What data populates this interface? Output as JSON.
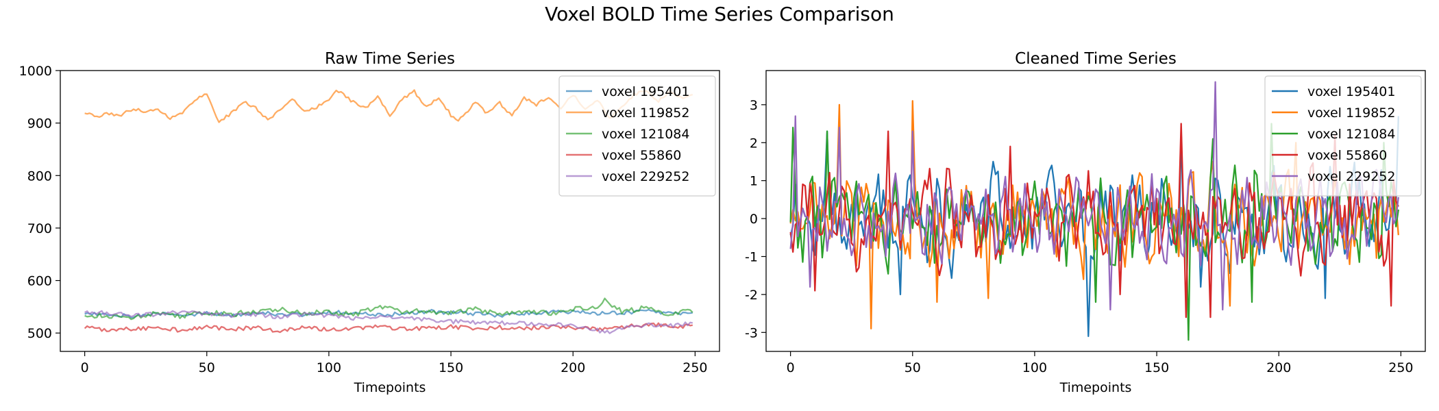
{
  "figure_title": "Voxel BOLD Time Series Comparison",
  "chart_data": [
    {
      "type": "line",
      "title": "Raw Time Series",
      "xlabel": "Timepoints",
      "ylabel": "",
      "xlim": [
        -10,
        260
      ],
      "ylim": [
        465,
        1000
      ],
      "xticks": [
        0,
        50,
        100,
        150,
        200,
        250
      ],
      "yticks": [
        500,
        600,
        700,
        800,
        900,
        1000
      ],
      "legend": "top-right",
      "line_alpha": 0.65,
      "n_points": 250,
      "series": [
        {
          "name": "voxel 195401",
          "color": "#1f77b4",
          "anchors": [
            [
              0,
              538
            ],
            [
              10,
              536
            ],
            [
              20,
              532
            ],
            [
              30,
              537
            ],
            [
              40,
              533
            ],
            [
              50,
              538
            ],
            [
              60,
              534
            ],
            [
              70,
              540
            ],
            [
              80,
              536
            ],
            [
              90,
              535
            ],
            [
              100,
              540
            ],
            [
              110,
              538
            ],
            [
              120,
              534
            ],
            [
              130,
              536
            ],
            [
              140,
              541
            ],
            [
              150,
              539
            ],
            [
              160,
              537
            ],
            [
              170,
              533
            ],
            [
              180,
              538
            ],
            [
              190,
              540
            ],
            [
              200,
              541
            ],
            [
              210,
              537
            ],
            [
              220,
              539
            ],
            [
              230,
              541
            ],
            [
              240,
              537
            ],
            [
              249,
              538
            ]
          ],
          "amp": 4
        },
        {
          "name": "voxel 119852",
          "color": "#ff7f0e",
          "anchors": [
            [
              0,
              920
            ],
            [
              5,
              912
            ],
            [
              10,
              918
            ],
            [
              15,
              915
            ],
            [
              20,
              928
            ],
            [
              25,
              922
            ],
            [
              30,
              926
            ],
            [
              35,
              910
            ],
            [
              40,
              918
            ],
            [
              45,
              945
            ],
            [
              50,
              955
            ],
            [
              55,
              903
            ],
            [
              60,
              918
            ],
            [
              65,
              940
            ],
            [
              70,
              930
            ],
            [
              75,
              905
            ],
            [
              80,
              925
            ],
            [
              85,
              948
            ],
            [
              90,
              920
            ],
            [
              95,
              930
            ],
            [
              100,
              945
            ],
            [
              103,
              965
            ],
            [
              110,
              940
            ],
            [
              115,
              928
            ],
            [
              120,
              950
            ],
            [
              125,
              915
            ],
            [
              130,
              945
            ],
            [
              135,
              960
            ],
            [
              140,
              930
            ],
            [
              145,
              950
            ],
            [
              150,
              915
            ],
            [
              153,
              903
            ],
            [
              160,
              940
            ],
            [
              165,
              918
            ],
            [
              170,
              938
            ],
            [
              175,
              913
            ],
            [
              180,
              948
            ],
            [
              185,
              935
            ],
            [
              190,
              950
            ],
            [
              195,
              930
            ],
            [
              200,
              955
            ],
            [
              205,
              928
            ],
            [
              210,
              945
            ],
            [
              215,
              910
            ],
            [
              220,
              930
            ],
            [
              225,
              955
            ],
            [
              230,
              960
            ],
            [
              235,
              942
            ],
            [
              240,
              960
            ],
            [
              245,
              945
            ],
            [
              249,
              955
            ]
          ],
          "amp": 3
        },
        {
          "name": "voxel 121084",
          "color": "#2ca02c",
          "anchors": [
            [
              0,
              535
            ],
            [
              10,
              532
            ],
            [
              20,
              530
            ],
            [
              30,
              538
            ],
            [
              40,
              532
            ],
            [
              50,
              540
            ],
            [
              60,
              535
            ],
            [
              70,
              542
            ],
            [
              80,
              545
            ],
            [
              90,
              538
            ],
            [
              100,
              540
            ],
            [
              110,
              535
            ],
            [
              120,
              548
            ],
            [
              125,
              555
            ],
            [
              130,
              540
            ],
            [
              140,
              542
            ],
            [
              150,
              537
            ],
            [
              160,
              545
            ],
            [
              170,
              538
            ],
            [
              180,
              542
            ],
            [
              190,
              538
            ],
            [
              200,
              545
            ],
            [
              210,
              552
            ],
            [
              213,
              562
            ],
            [
              220,
              540
            ],
            [
              230,
              548
            ],
            [
              240,
              536
            ],
            [
              249,
              543
            ]
          ],
          "amp": 5
        },
        {
          "name": "voxel 55860",
          "color": "#d62728",
          "anchors": [
            [
              0,
              510
            ],
            [
              10,
              506
            ],
            [
              20,
              508
            ],
            [
              30,
              511
            ],
            [
              40,
              505
            ],
            [
              50,
              512
            ],
            [
              60,
              508
            ],
            [
              70,
              510
            ],
            [
              80,
              503
            ],
            [
              90,
              512
            ],
            [
              100,
              506
            ],
            [
              110,
              509
            ],
            [
              120,
              512
            ],
            [
              130,
              507
            ],
            [
              140,
              510
            ],
            [
              150,
              512
            ],
            [
              160,
              508
            ],
            [
              170,
              511
            ],
            [
              180,
              509
            ],
            [
              190,
              512
            ],
            [
              200,
              510
            ],
            [
              210,
              508
            ],
            [
              220,
              512
            ],
            [
              230,
              516
            ],
            [
              240,
              514
            ],
            [
              249,
              512
            ]
          ],
          "amp": 4
        },
        {
          "name": "voxel 229252",
          "color": "#9467bd",
          "anchors": [
            [
              0,
              540
            ],
            [
              10,
              538
            ],
            [
              20,
              534
            ],
            [
              30,
              536
            ],
            [
              40,
              540
            ],
            [
              50,
              537
            ],
            [
              60,
              532
            ],
            [
              70,
              536
            ],
            [
              80,
              530
            ],
            [
              90,
              536
            ],
            [
              100,
              533
            ],
            [
              110,
              528
            ],
            [
              120,
              532
            ],
            [
              130,
              529
            ],
            [
              140,
              525
            ],
            [
              150,
              522
            ],
            [
              160,
              520
            ],
            [
              170,
              519
            ],
            [
              180,
              518
            ],
            [
              190,
              516
            ],
            [
              200,
              515
            ],
            [
              210,
              505
            ],
            [
              215,
              500
            ],
            [
              220,
              510
            ],
            [
              230,
              515
            ],
            [
              240,
              514
            ],
            [
              249,
              518
            ]
          ],
          "amp": 4
        }
      ]
    },
    {
      "type": "line",
      "title": "Cleaned Time Series",
      "xlabel": "Timepoints",
      "ylabel": "",
      "xlim": [
        -10,
        260
      ],
      "ylim": [
        -3.5,
        3.9
      ],
      "xticks": [
        0,
        50,
        100,
        150,
        200,
        250
      ],
      "yticks": [
        -3,
        -2,
        -1,
        0,
        1,
        2,
        3
      ],
      "legend": "top-right",
      "line_alpha": 1,
      "n_points": 250,
      "series": [
        {
          "name": "voxel 195401",
          "color": "#1f77b4",
          "seed": 11,
          "amp": 1.0,
          "extremes": [
            [
              2,
              0.9
            ],
            [
              15,
              2.3
            ],
            [
              45,
              -2.0
            ],
            [
              122,
              -3.1
            ],
            [
              160,
              2.3
            ],
            [
              168,
              -1.8
            ],
            [
              219,
              -2.1
            ],
            [
              249,
              2.7
            ]
          ]
        },
        {
          "name": "voxel 119852",
          "color": "#ff7f0e",
          "seed": 23,
          "amp": 1.0,
          "extremes": [
            [
              20,
              3.0
            ],
            [
              33,
              -2.9
            ],
            [
              50,
              3.1
            ],
            [
              60,
              -2.2
            ],
            [
              81,
              -2.1
            ],
            [
              120,
              -1.6
            ],
            [
              180,
              -2.3
            ],
            [
              207,
              2.0
            ]
          ]
        },
        {
          "name": "voxel 121084",
          "color": "#2ca02c",
          "seed": 37,
          "amp": 1.0,
          "extremes": [
            [
              1,
              2.4
            ],
            [
              15,
              2.3
            ],
            [
              125,
              -2.2
            ],
            [
              163,
              -3.2
            ],
            [
              173,
              2.1
            ],
            [
              189,
              -2.2
            ],
            [
              197,
              2.5
            ],
            [
              243,
              2.0
            ]
          ]
        },
        {
          "name": "voxel 55860",
          "color": "#d62728",
          "seed": 53,
          "amp": 1.0,
          "extremes": [
            [
              10,
              -1.9
            ],
            [
              40,
              2.3
            ],
            [
              90,
              1.9
            ],
            [
              135,
              -2.0
            ],
            [
              160,
              2.5
            ],
            [
              162,
              -2.6
            ],
            [
              172,
              -2.6
            ],
            [
              223,
              2.2
            ],
            [
              246,
              -2.3
            ]
          ]
        },
        {
          "name": "voxel 229252",
          "color": "#9467bd",
          "seed": 71,
          "amp": 0.9,
          "extremes": [
            [
              0,
              -0.8
            ],
            [
              2,
              2.7
            ],
            [
              8,
              -1.8
            ],
            [
              20,
              2.4
            ],
            [
              50,
              2.3
            ],
            [
              131,
              -2.4
            ],
            [
              174,
              3.6
            ],
            [
              177,
              -2.4
            ]
          ]
        }
      ]
    }
  ]
}
